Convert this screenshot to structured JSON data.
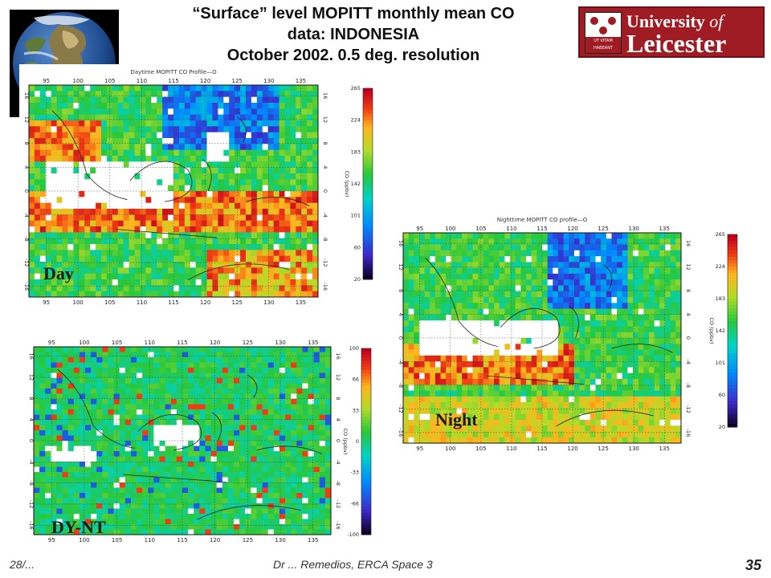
{
  "slide": {
    "title_line1": "“Surface” level MOPITT monthly mean CO",
    "title_line2": "data: INDONESIA",
    "title_line3": "October 2002. 0.5 deg. resolution",
    "footer_date": "28/...",
    "footer_text": "Dr ... Remedios, ERCA Space 3",
    "page_number": "35"
  },
  "logo": {
    "line1_a": "University ",
    "line1_b": "of",
    "line2": "Leicester",
    "motto": "UT VITAM HABEANT"
  },
  "icons": {
    "earth": "earth-globe-icon",
    "crest": "university-crest-icon"
  },
  "colors": {
    "scale_top": "#b2001e",
    "scale_bottom": "#000000",
    "map_field": "#2ecc40"
  },
  "panels": {
    "day": {
      "label": "Day",
      "header": "Daytime MOPITT CO Profile—O",
      "x_ticks": [
        "95",
        "100",
        "105",
        "110",
        "115",
        "120",
        "125",
        "130",
        "135"
      ],
      "y_ticks": [
        "16",
        "12",
        "8",
        "4",
        "0",
        "-4",
        "-8",
        "-12",
        "-16"
      ],
      "colorbar_ticks": [
        "265",
        "224",
        "183",
        "142",
        "101",
        "60",
        "20"
      ],
      "colorbar_label": "CO (ppbv)"
    },
    "night": {
      "label": "Night",
      "header": "Nighttime MOPITT CO profile—O",
      "x_ticks": [
        "95",
        "100",
        "105",
        "110",
        "115",
        "120",
        "125",
        "130",
        "135"
      ],
      "y_ticks": [
        "16",
        "12",
        "8",
        "4",
        "0",
        "-4",
        "-8",
        "-12",
        "-16"
      ],
      "colorbar_ticks": [
        "265",
        "224",
        "183",
        "142",
        "101",
        "60",
        "20"
      ],
      "colorbar_label": "CO (ppbv)"
    },
    "diff": {
      "label": "DY-NT",
      "header": "",
      "x_ticks": [
        "95",
        "100",
        "105",
        "110",
        "115",
        "120",
        "125",
        "130",
        "135"
      ],
      "y_ticks": [
        "16",
        "12",
        "8",
        "4",
        "0",
        "-4",
        "-8",
        "-12",
        "-16"
      ],
      "colorbar_ticks": [
        "100",
        "66",
        "33",
        "0",
        "-33",
        "-66",
        "-100"
      ],
      "colorbar_label": "CO (ppbv)"
    }
  }
}
